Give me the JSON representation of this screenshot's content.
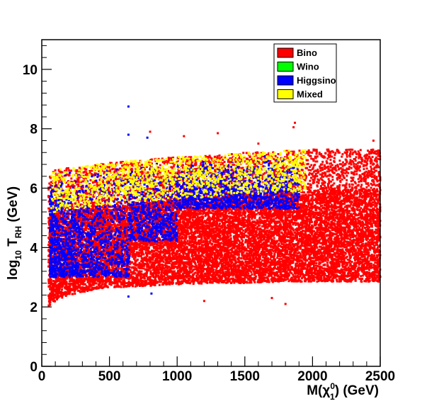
{
  "chart_data": {
    "type": "scatter",
    "title": "",
    "xlabel": {
      "base": "M(",
      "symbol": "χ",
      "sup": "0",
      "sub": "1",
      "rest": ") (GeV)"
    },
    "ylabel": {
      "prefix": "log",
      "sub1": "10",
      "mid": " T",
      "sub2": "RH",
      "suffix": " (GeV)"
    },
    "xlim": [
      0,
      2500
    ],
    "ylim": [
      0,
      11
    ],
    "xticks": [
      0,
      500,
      1000,
      1500,
      2000,
      2500
    ],
    "xtick_labels": [
      "0",
      "500",
      "1000",
      "1500",
      "2000",
      "2500"
    ],
    "yticks": [
      0,
      2,
      4,
      6,
      8,
      10
    ],
    "ytick_labels": [
      "0",
      "2",
      "4",
      "6",
      "8",
      "10"
    ],
    "grid": false,
    "legend_position": "top-right",
    "series": [
      {
        "name": "Bino",
        "color": "#ff0000"
      },
      {
        "name": "Wino",
        "color": "#00ff00"
      },
      {
        "name": "Higgsino",
        "color": "#0000ff"
      },
      {
        "name": "Mixed",
        "color": "#ffff00"
      }
    ],
    "regions": {
      "bino_band": {
        "x": [
          50,
          100,
          200,
          300,
          400,
          500,
          750,
          1000,
          1250,
          1500,
          1750,
          2000,
          2250,
          2500
        ],
        "y_low": [
          2.0,
          2.2,
          2.4,
          2.5,
          2.6,
          2.65,
          2.7,
          2.75,
          2.8,
          2.8,
          2.85,
          2.85,
          2.85,
          2.85
        ],
        "y_high": [
          5.0,
          5.1,
          5.2,
          5.3,
          5.35,
          5.4,
          5.5,
          5.6,
          5.7,
          5.8,
          5.85,
          5.9,
          5.95,
          6.0
        ]
      },
      "upper_envelope": {
        "x": [
          50,
          100,
          200,
          300,
          400,
          500,
          750,
          1000,
          1250,
          1500,
          1750,
          2000,
          2250,
          2500
        ],
        "y": [
          6.5,
          6.6,
          6.7,
          6.75,
          6.8,
          6.85,
          6.95,
          7.05,
          7.1,
          7.2,
          7.25,
          7.3,
          7.3,
          7.3
        ]
      },
      "higgsino_x_max": 1900,
      "mixed_x_max": 1950
    },
    "outliers": [
      {
        "series": "Higgsino",
        "x": 640,
        "y": 8.75
      },
      {
        "series": "Higgsino",
        "x": 640,
        "y": 7.8
      },
      {
        "series": "Higgsino",
        "x": 780,
        "y": 7.7
      },
      {
        "series": "Higgsino",
        "x": 810,
        "y": 2.45
      },
      {
        "series": "Higgsino",
        "x": 640,
        "y": 2.35
      },
      {
        "series": "Bino",
        "x": 800,
        "y": 7.9
      },
      {
        "series": "Bino",
        "x": 1050,
        "y": 7.75
      },
      {
        "series": "Bino",
        "x": 1300,
        "y": 7.85
      },
      {
        "series": "Bino",
        "x": 1870,
        "y": 8.2
      },
      {
        "series": "Bino",
        "x": 1860,
        "y": 8.05
      },
      {
        "series": "Bino",
        "x": 1600,
        "y": 7.5
      },
      {
        "series": "Bino",
        "x": 1200,
        "y": 2.2
      },
      {
        "series": "Bino",
        "x": 1800,
        "y": 2.1
      },
      {
        "series": "Bino",
        "x": 1700,
        "y": 2.3
      },
      {
        "series": "Bino",
        "x": 2450,
        "y": 7.6
      },
      {
        "series": "Bino",
        "x": 2300,
        "y": 7.2
      }
    ]
  }
}
